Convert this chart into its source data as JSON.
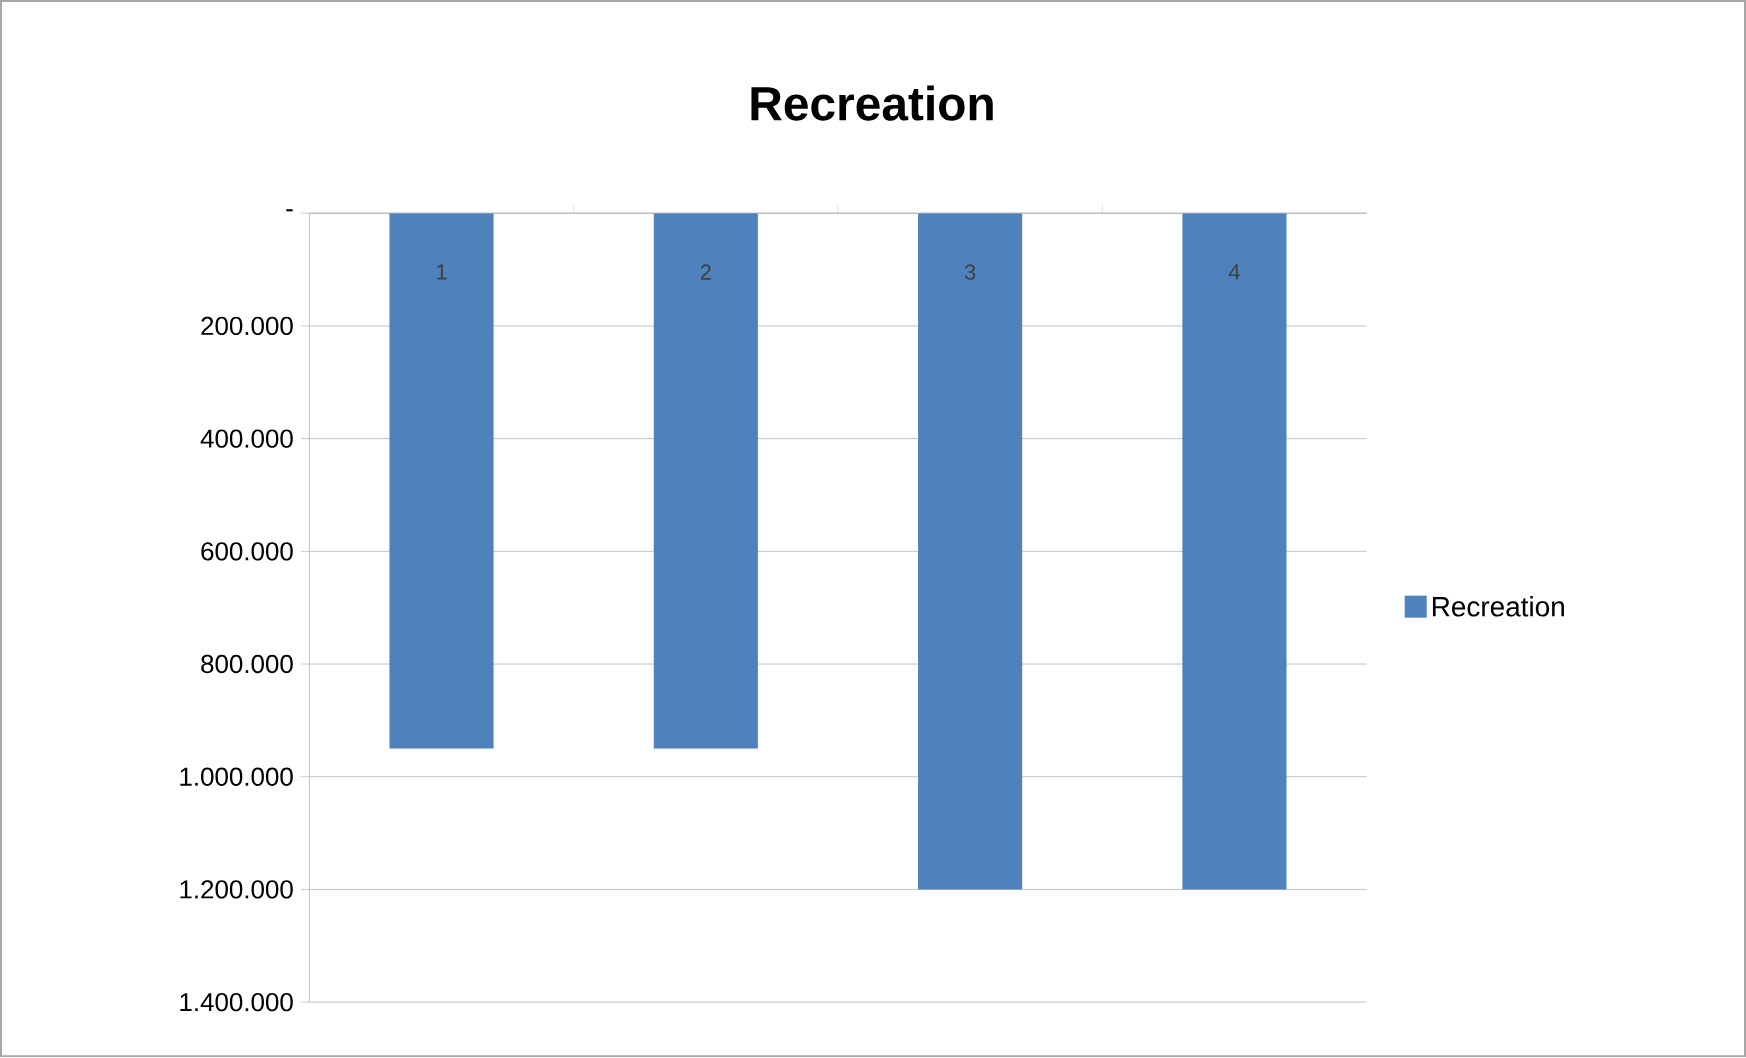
{
  "chart_data": {
    "type": "bar",
    "title": "Recreation",
    "categories": [
      "1",
      "2",
      "3",
      "4"
    ],
    "series": [
      {
        "name": "Recreation",
        "color": "#4f81bd",
        "values": [
          950000,
          950000,
          1200000,
          1200000
        ]
      }
    ],
    "ylim": [
      1400000,
      0
    ],
    "yticks": [
      {
        "value": 0,
        "label": "-"
      },
      {
        "value": 200000,
        "label": "200.000"
      },
      {
        "value": 400000,
        "label": "400.000"
      },
      {
        "value": 600000,
        "label": "600.000"
      },
      {
        "value": 800000,
        "label": "800.000"
      },
      {
        "value": 1000000,
        "label": "1.000.000"
      },
      {
        "value": 1200000,
        "label": "1.200.000"
      },
      {
        "value": 1400000,
        "label": "1.400.000"
      }
    ],
    "grid": "y",
    "legend": "right"
  }
}
